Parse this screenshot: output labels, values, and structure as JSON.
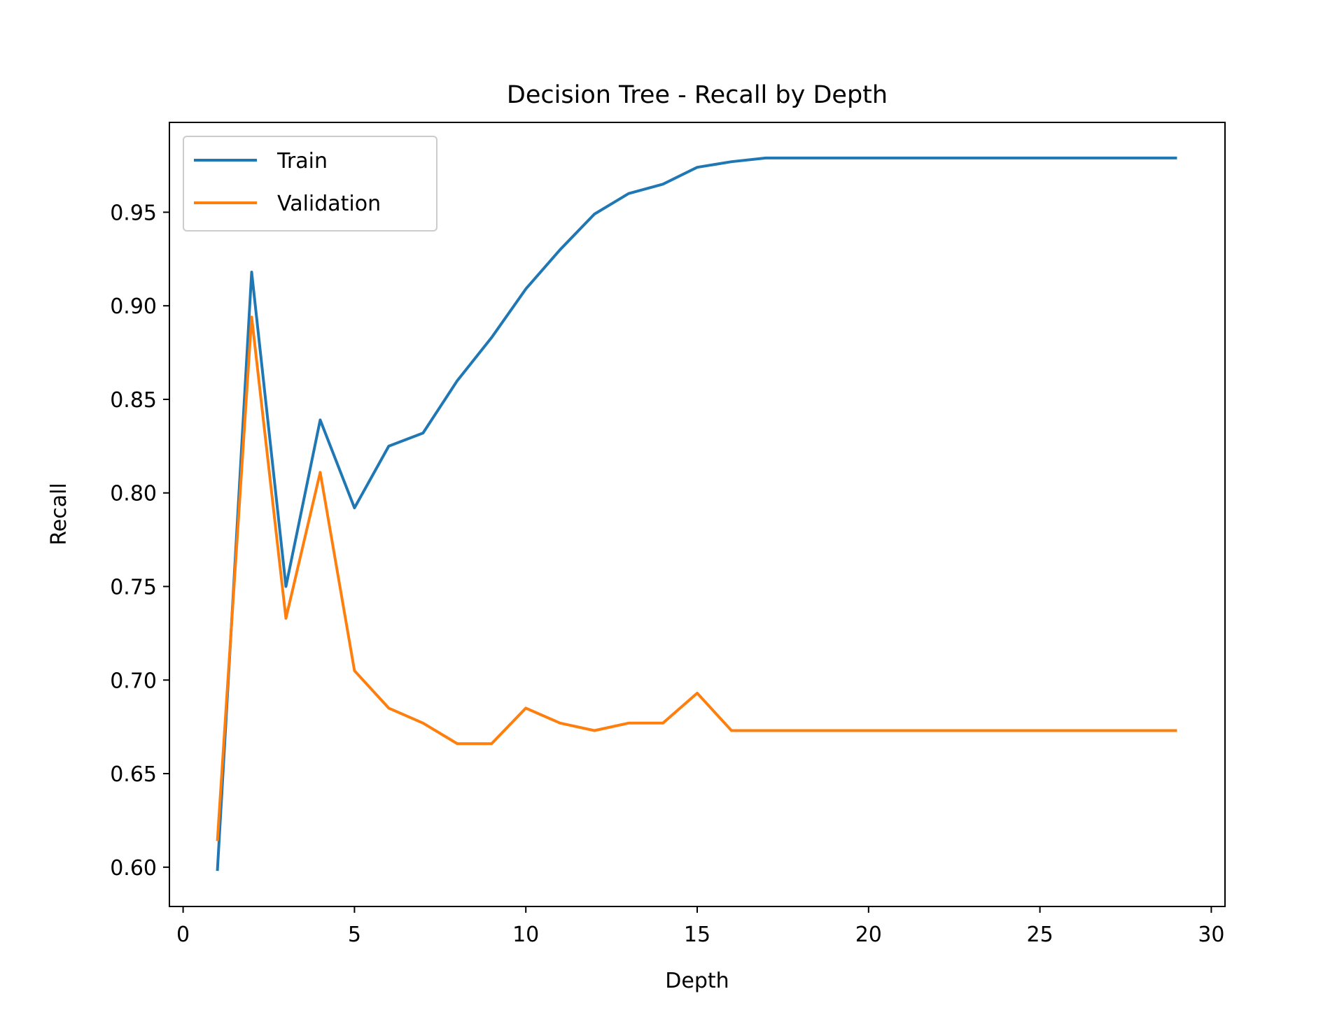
{
  "chart_data": {
    "type": "line",
    "title": "Decision Tree - Recall by Depth",
    "xlabel": "Depth",
    "ylabel": "Recall",
    "xlim": [
      -0.4,
      30.4
    ],
    "ylim": [
      0.579,
      0.998
    ],
    "xticks": [
      0,
      5,
      10,
      15,
      20,
      25,
      30
    ],
    "xtick_labels": [
      "0",
      "5",
      "10",
      "15",
      "20",
      "25",
      "30"
    ],
    "yticks": [
      0.6,
      0.65,
      0.7,
      0.75,
      0.8,
      0.85,
      0.9,
      0.95
    ],
    "ytick_labels": [
      "0.60",
      "0.65",
      "0.70",
      "0.75",
      "0.80",
      "0.85",
      "0.90",
      "0.95"
    ],
    "grid": false,
    "legend_position": "upper-left",
    "x": [
      1,
      2,
      3,
      4,
      5,
      6,
      7,
      8,
      9,
      10,
      11,
      12,
      13,
      14,
      15,
      16,
      17,
      18,
      19,
      20,
      21,
      22,
      23,
      24,
      25,
      26,
      27,
      28,
      29
    ],
    "series": [
      {
        "name": "Train",
        "color": "#1f77b4",
        "values": [
          0.598,
          0.918,
          0.75,
          0.839,
          0.792,
          0.825,
          0.832,
          0.86,
          0.883,
          0.909,
          0.93,
          0.949,
          0.96,
          0.965,
          0.974,
          0.977,
          0.979,
          0.979,
          0.979,
          0.979,
          0.979,
          0.979,
          0.979,
          0.979,
          0.979,
          0.979,
          0.979,
          0.979,
          0.979
        ]
      },
      {
        "name": "Validation",
        "color": "#ff7f0e",
        "values": [
          0.614,
          0.894,
          0.733,
          0.811,
          0.705,
          0.685,
          0.677,
          0.666,
          0.666,
          0.685,
          0.677,
          0.673,
          0.677,
          0.677,
          0.693,
          0.673,
          0.673,
          0.673,
          0.673,
          0.673,
          0.673,
          0.673,
          0.673,
          0.673,
          0.673,
          0.673,
          0.673,
          0.673,
          0.673
        ]
      }
    ]
  }
}
